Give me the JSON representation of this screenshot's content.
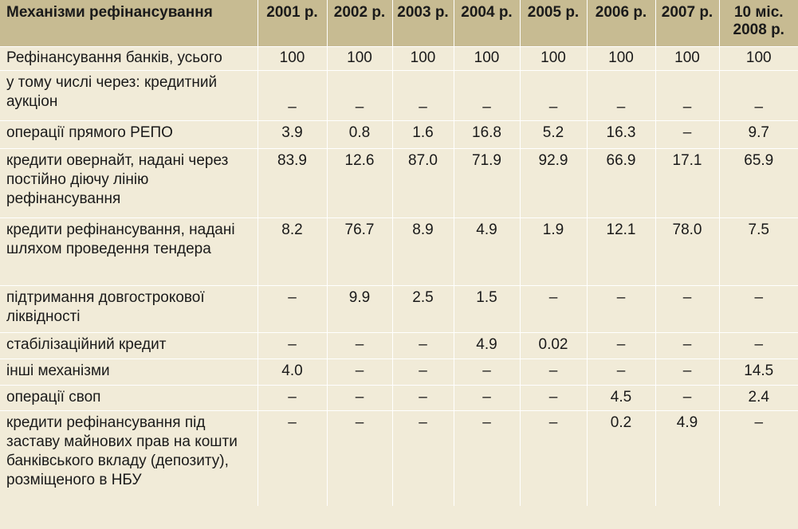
{
  "table": {
    "header": [
      "Механізми рефінансування",
      "2001 р.",
      "2002 р.",
      "2003 р.",
      "2004 р.",
      "2005 р.",
      "2006 р.",
      "2007 р.",
      "10 міс. 2008 р."
    ],
    "rows": [
      {
        "label": "Рефінансування банків, усього",
        "values": [
          "100",
          "100",
          "100",
          "100",
          "100",
          "100",
          "100",
          "100"
        ]
      },
      {
        "label": "у тому числі через: кредитний аукціон",
        "values": [
          "–",
          "–",
          "–",
          "–",
          "–",
          "–",
          "–",
          "–"
        ]
      },
      {
        "label": "операції прямого РЕПО",
        "values": [
          "3.9",
          "0.8",
          "1.6",
          "16.8",
          "5.2",
          "16.3",
          "–",
          "9.7"
        ]
      },
      {
        "label": "кредити овернайт, надані через постійно діючу лінію рефінансування",
        "values": [
          "83.9",
          "12.6",
          "87.0",
          "71.9",
          "92.9",
          "66.9",
          "17.1",
          "65.9"
        ]
      },
      {
        "label": "кредити рефінансування, надані шляхом проведення тендера",
        "values": [
          "8.2",
          "76.7",
          "8.9",
          "4.9",
          "1.9",
          "12.1",
          "78.0",
          "7.5"
        ]
      },
      {
        "label": "підтримання довгострокової ліквідності",
        "values": [
          "–",
          "9.9",
          "2.5",
          "1.5",
          "–",
          "–",
          "–",
          "–"
        ]
      },
      {
        "label": "стабілізаційний кредит",
        "values": [
          "–",
          "–",
          "–",
          "4.9",
          "0.02",
          "–",
          "–",
          "–"
        ]
      },
      {
        "label": "інші механізми",
        "values": [
          "4.0",
          "–",
          "–",
          "–",
          "–",
          "–",
          "–",
          "14.5"
        ]
      },
      {
        "label": "операції своп",
        "values": [
          "–",
          "–",
          "–",
          "–",
          "–",
          "4.5",
          "–",
          "2.4"
        ]
      },
      {
        "label": "кредити рефінансування під заставу майнових прав на кошти банківського вкладу (депозиту), розміщеного в НБУ",
        "values": [
          "–",
          "–",
          "–",
          "–",
          "–",
          "0.2",
          "4.9",
          "–"
        ]
      }
    ]
  }
}
